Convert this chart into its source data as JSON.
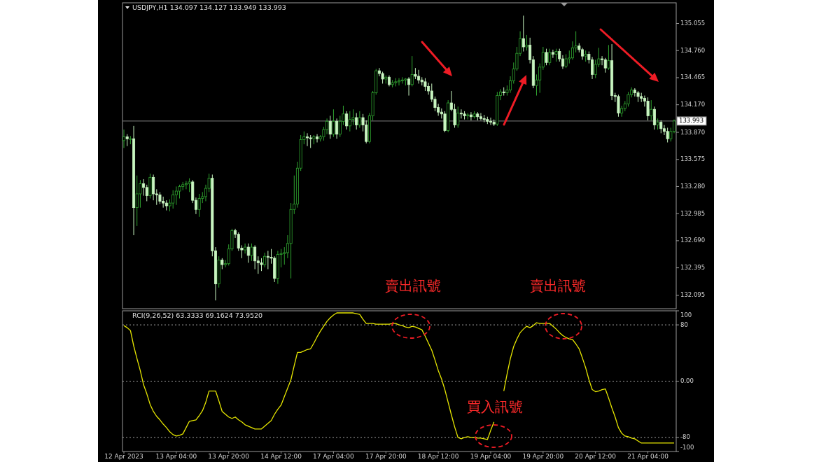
{
  "chart_data": [
    {
      "type": "candlestick",
      "title": "USDJPY,H1  134.097 134.127 133.949 133.993",
      "tick_labels": "y",
      "ylim": [
        131.95,
        135.28
      ],
      "yticks": [
        135.055,
        {
          "value": 134.76,
          "label": "134.760"
        },
        134.465,
        {
          "value": 134.17,
          "label": "134.170"
        },
        {
          "value": 133.87,
          "label": "133.870"
        },
        133.575,
        {
          "value": 133.28,
          "label": "133.280"
        },
        132.985,
        {
          "value": 132.69,
          "label": "132.690"
        },
        132.395,
        132.095
      ],
      "ref_lines": [
        {
          "axis": "y",
          "value": 133.993,
          "label": "133.993",
          "color": "#808080"
        }
      ],
      "annotations": [
        "賣出訊號",
        "賣出訊號"
      ],
      "categories": [
        null,
        null,
        null,
        null,
        null,
        null,
        null,
        null,
        null,
        null,
        null,
        null,
        null,
        null,
        null,
        null,
        null,
        null,
        null,
        null,
        null,
        null,
        null,
        null,
        null,
        null,
        null,
        null,
        null,
        null,
        null,
        null,
        null,
        null,
        null,
        null,
        null,
        null,
        null,
        null,
        null,
        null,
        null,
        null,
        null,
        null,
        null,
        null,
        null,
        null,
        null,
        null,
        null,
        null,
        null,
        null,
        null,
        null,
        null,
        null,
        null,
        null,
        null,
        null,
        null,
        null,
        null,
        null,
        null,
        null,
        null,
        null,
        null,
        null,
        null,
        null,
        null,
        null,
        null,
        null,
        null,
        null,
        null,
        null,
        null,
        null,
        null,
        null,
        null,
        null,
        null,
        null,
        null,
        null,
        null,
        null,
        null,
        null,
        null,
        null,
        null,
        null,
        null,
        null,
        null,
        null,
        null,
        null,
        null,
        null,
        null,
        null,
        null,
        null,
        null,
        null,
        null,
        null,
        null,
        null,
        null,
        null,
        null,
        null,
        null,
        null,
        null,
        null,
        null,
        null,
        null,
        null,
        null,
        null,
        null,
        null,
        null,
        null,
        null,
        null,
        null,
        null,
        null,
        null,
        null,
        null,
        null,
        null,
        null,
        null,
        null,
        null,
        null,
        null,
        null,
        null,
        null,
        null,
        null,
        null,
        null,
        null,
        null,
        null,
        null,
        null,
        null,
        null,
        null
      ],
      "series": [
        {
          "colors": [
            "#2fa32f",
            "#c8f5c0",
            "#2fa32f",
            "#c8f5c0",
            "#2fa32f",
            "#2fa32f",
            "#c8f5c0",
            "#c8f5c0",
            "#2fa32f",
            "#c8f5c0",
            "#c8f5c0",
            "#c8f5c0",
            "#c8f5c0",
            "#c8f5c0",
            "#2fa32f",
            "#2fa32f",
            "#2fa32f",
            "#2fa32f",
            "#2fa32f",
            "#2fa32f",
            "#2fa32f",
            "#c8f5c0",
            "#c8f5c0",
            "#2fa32f",
            "#2fa32f",
            "#2fa32f",
            "#2fa32f",
            "#c8f5c0",
            "#c8f5c0",
            "#2fa32f",
            "#c8f5c0",
            "#2fa32f",
            "#2fa32f",
            "#2fa32f",
            "#c8f5c0",
            "#c8f5c0",
            "#c8f5c0",
            "#2fa32f",
            "#c8f5c0",
            "#2fa32f",
            "#c8f5c0",
            "#c8f5c0",
            "#c8f5c0",
            "#2fa32f",
            "#c8f5c0",
            "#c8f5c0",
            "#c8f5c0",
            "#2fa32f",
            "#2fa32f",
            "#2fa32f",
            "#2fa32f",
            "#2fa32f",
            "#2fa32f",
            "#2fa32f",
            "#2fa32f",
            "#2fa32f",
            "#c8f5c0",
            "#c8f5c0",
            "#2fa32f",
            "#c8f5c0",
            "#2fa32f",
            "#2fa32f",
            "#2fa32f",
            "#c8f5c0",
            "#2fa32f",
            "#c8f5c0",
            "#2fa32f",
            "#2fa32f",
            "#c8f5c0",
            "#2fa32f",
            "#2fa32f",
            "#c8f5c0",
            "#2fa32f",
            "#c8f5c0",
            "#c8f5c0",
            "#2fa32f",
            "#2fa32f",
            "#2fa32f",
            "#c8f5c0",
            "#c8f5c0",
            "#2fa32f",
            "#c8f5c0",
            "#2fa32f",
            "#2fa32f",
            "#2fa32f",
            "#2fa32f",
            "#2fa32f",
            "#c8f5c0",
            "#2fa32f",
            "#c8f5c0",
            "#c8f5c0",
            "#c8f5c0",
            "#c8f5c0",
            "#c8f5c0",
            "#c8f5c0",
            "#c8f5c0",
            "#c8f5c0",
            "#c8f5c0",
            "#c8f5c0",
            "#2fa32f",
            "#c8f5c0",
            "#c8f5c0",
            "#2fa32f",
            "#c8f5c0",
            "#c8f5c0",
            "#2fa32f",
            "#c8f5c0",
            "#2fa32f",
            "#c8f5c0",
            "#c8f5c0",
            "#c8f5c0",
            "#c8f5c0",
            "#c8f5c0",
            "#c8f5c0",
            "#2fa32f",
            "#2fa32f",
            "#c8f5c0",
            "#2fa32f",
            "#2fa32f",
            "#2fa32f",
            "#2fa32f",
            "#2fa32f",
            "#c8f5c0",
            "#2fa32f",
            "#c8f5c0",
            "#c8f5c0",
            "#2fa32f",
            "#2fa32f",
            "#2fa32f",
            "#c8f5c0",
            "#2fa32f",
            "#c8f5c0",
            "#2fa32f",
            "#c8f5c0",
            "#c8f5c0",
            "#2fa32f",
            "#2fa32f",
            "#2fa32f",
            "#2fa32f",
            "#c8f5c0",
            "#c8f5c0",
            "#2fa32f",
            "#c8f5c0",
            "#c8f5c0",
            "#2fa32f",
            "#2fa32f",
            "#c8f5c0",
            "#c8f5c0",
            "#2fa32f",
            "#c8f5c0",
            "#c8f5c0",
            "#c8f5c0",
            "#2fa32f",
            "#2fa32f",
            "#2fa32f",
            "#2fa32f",
            "#c8f5c0",
            "#c8f5c0",
            "#c8f5c0",
            "#c8f5c0",
            "#c8f5c0",
            "#2fa32f",
            "#c8f5c0",
            "#2fa32f",
            "#c8f5c0",
            "#c8f5c0",
            "#c8f5c0",
            "#2fa32f",
            "#2fa32f"
          ],
          "ohlc": [
            [
              133.78,
              133.9,
              133.7,
              133.82
            ],
            [
              133.82,
              133.85,
              133.72,
              133.8
            ],
            [
              133.8,
              133.83,
              133.74,
              133.8
            ],
            [
              133.8,
              133.94,
              132.75,
              133.05
            ],
            [
              133.05,
              133.4,
              132.85,
              133.2
            ],
            [
              133.2,
              133.35,
              133.05,
              133.31
            ],
            [
              133.31,
              133.36,
              133.18,
              133.27
            ],
            [
              133.27,
              133.3,
              133.12,
              133.18
            ],
            [
              133.18,
              133.42,
              133.15,
              133.38
            ],
            [
              133.38,
              133.41,
              133.13,
              133.2
            ],
            [
              133.2,
              133.25,
              133.08,
              133.19
            ],
            [
              133.19,
              133.22,
              133.09,
              133.12
            ],
            [
              133.12,
              133.17,
              133.05,
              133.1
            ],
            [
              133.1,
              133.13,
              133.02,
              133.07
            ],
            [
              133.07,
              133.14,
              133.01,
              133.1
            ],
            [
              133.1,
              133.24,
              133.04,
              133.19
            ],
            [
              133.19,
              133.28,
              133.08,
              133.23
            ],
            [
              133.23,
              133.3,
              133.15,
              133.28
            ],
            [
              133.28,
              133.33,
              133.24,
              133.3
            ],
            [
              133.3,
              133.34,
              133.25,
              133.31
            ],
            [
              133.31,
              133.37,
              133.22,
              133.33
            ],
            [
              133.33,
              133.35,
              133.1,
              133.13
            ],
            [
              133.13,
              133.16,
              132.98,
              133.03
            ],
            [
              133.03,
              133.2,
              132.95,
              133.15
            ],
            [
              133.15,
              133.22,
              133.1,
              133.17
            ],
            [
              133.17,
              133.3,
              133.12,
              133.26
            ],
            [
              133.26,
              133.42,
              133.22,
              133.37
            ],
            [
              133.37,
              133.41,
              132.52,
              132.58
            ],
            [
              132.58,
              132.62,
              132.04,
              132.22
            ],
            [
              132.22,
              132.52,
              132.18,
              132.48
            ],
            [
              132.48,
              132.5,
              132.38,
              132.43
            ],
            [
              132.43,
              132.48,
              132.4,
              132.44
            ],
            [
              132.44,
              132.65,
              132.42,
              132.6
            ],
            [
              132.6,
              132.82,
              132.58,
              132.8
            ],
            [
              132.8,
              132.82,
              132.72,
              132.76
            ],
            [
              132.76,
              132.78,
              132.58,
              132.61
            ],
            [
              132.61,
              132.64,
              132.5,
              132.59
            ],
            [
              132.59,
              132.66,
              132.55,
              132.62
            ],
            [
              132.62,
              132.66,
              132.45,
              132.53
            ],
            [
              132.53,
              132.66,
              132.47,
              132.62
            ],
            [
              132.62,
              132.64,
              132.38,
              132.47
            ],
            [
              132.47,
              132.52,
              132.33,
              132.45
            ],
            [
              132.45,
              132.5,
              132.36,
              132.43
            ],
            [
              132.43,
              132.56,
              132.4,
              132.52
            ],
            [
              132.52,
              132.58,
              132.38,
              132.51
            ],
            [
              132.51,
              132.6,
              132.44,
              132.5
            ],
            [
              132.5,
              132.52,
              132.24,
              132.28
            ],
            [
              132.28,
              132.58,
              132.22,
              132.54
            ],
            [
              132.54,
              132.6,
              132.4,
              132.55
            ],
            [
              132.55,
              132.62,
              132.43,
              132.56
            ],
            [
              132.56,
              132.75,
              132.5,
              132.66
            ],
            [
              132.66,
              133.1,
              132.28,
              133.03
            ],
            [
              133.03,
              133.4,
              132.98,
              133.09
            ],
            [
              133.09,
              133.55,
              133.05,
              133.48
            ],
            [
              133.48,
              133.84,
              133.45,
              133.79
            ],
            [
              133.79,
              133.88,
              133.74,
              133.82
            ],
            [
              133.82,
              133.86,
              133.72,
              133.81
            ],
            [
              133.81,
              133.84,
              133.7,
              133.8
            ],
            [
              133.8,
              133.84,
              133.74,
              133.82
            ],
            [
              133.82,
              133.85,
              133.76,
              133.8
            ],
            [
              133.8,
              133.84,
              133.77,
              133.82
            ],
            [
              133.82,
              133.93,
              133.78,
              133.9
            ],
            [
              133.9,
              134.02,
              133.85,
              133.99
            ],
            [
              133.99,
              134.05,
              133.8,
              133.85
            ],
            [
              133.85,
              134.12,
              133.82,
              133.99
            ],
            [
              133.99,
              134.02,
              133.8,
              133.85
            ],
            [
              133.85,
              134.05,
              133.82,
              133.99
            ],
            [
              133.99,
              134.16,
              133.95,
              134.07
            ],
            [
              134.07,
              134.1,
              133.9,
              133.94
            ],
            [
              133.94,
              134.1,
              133.88,
              134.01
            ],
            [
              134.01,
              134.12,
              133.95,
              134.03
            ],
            [
              134.03,
              134.08,
              133.9,
              133.95
            ],
            [
              133.95,
              134.1,
              133.92,
              134.03
            ],
            [
              134.03,
              134.07,
              133.88,
              133.95
            ],
            [
              133.95,
              134,
              133.75,
              133.77
            ],
            [
              133.77,
              134.08,
              133.75,
              134.05
            ],
            [
              134.05,
              134.32,
              134,
              134.3
            ],
            [
              134.3,
              134.56,
              134.28,
              134.54
            ],
            [
              134.54,
              134.57,
              134.48,
              134.51
            ],
            [
              134.51,
              134.53,
              134.4,
              134.45
            ],
            [
              134.45,
              134.49,
              134.4,
              134.47
            ],
            [
              134.47,
              134.49,
              134.37,
              134.39
            ],
            [
              134.39,
              134.44,
              134.36,
              134.41
            ],
            [
              134.41,
              134.46,
              134.37,
              134.42
            ],
            [
              134.42,
              134.46,
              134.38,
              134.43
            ],
            [
              134.43,
              134.47,
              134.4,
              134.44
            ],
            [
              134.44,
              134.46,
              134.38,
              134.45
            ],
            [
              134.45,
              134.47,
              134.27,
              134.39
            ],
            [
              134.39,
              134.7,
              134.37,
              134.5
            ],
            [
              134.5,
              134.57,
              134.45,
              134.48
            ],
            [
              134.48,
              134.55,
              134.4,
              134.44
            ],
            [
              134.44,
              134.47,
              134.38,
              134.42
            ],
            [
              134.42,
              134.46,
              134.32,
              134.37
            ],
            [
              134.37,
              134.41,
              134.28,
              134.32
            ],
            [
              134.32,
              134.4,
              134.2,
              134.23
            ],
            [
              134.23,
              134.26,
              134.1,
              134.14
            ],
            [
              134.14,
              134.18,
              134.05,
              134.09
            ],
            [
              134.09,
              134.13,
              134.02,
              134.07
            ],
            [
              134.07,
              134.1,
              133.87,
              133.89
            ],
            [
              133.89,
              134.22,
              133.87,
              134.19
            ],
            [
              134.19,
              134.32,
              134.1,
              134.12
            ],
            [
              134.12,
              134.18,
              133.92,
              133.95
            ],
            [
              133.95,
              134.15,
              133.92,
              134.08
            ],
            [
              134.08,
              134.12,
              134.02,
              134.07
            ],
            [
              134.07,
              134.1,
              134.01,
              134.05
            ],
            [
              134.05,
              134.08,
              134.01,
              134.06
            ],
            [
              134.06,
              134.09,
              134,
              134.04
            ],
            [
              134.04,
              134.1,
              134.02,
              134.07
            ],
            [
              134.07,
              134.09,
              134,
              134.04
            ],
            [
              134.04,
              134.08,
              134,
              134.02
            ],
            [
              134.02,
              134.06,
              133.98,
              134.01
            ],
            [
              134.01,
              134.04,
              133.96,
              133.99
            ],
            [
              133.99,
              134.03,
              133.95,
              133.98
            ],
            [
              133.98,
              134.01,
              133.94,
              133.96
            ],
            [
              133.96,
              134.31,
              133.94,
              134.27
            ],
            [
              134.27,
              134.34,
              134.22,
              134.31
            ],
            [
              134.31,
              134.36,
              134.27,
              134.3
            ],
            [
              134.3,
              134.38,
              134.27,
              134.33
            ],
            [
              134.33,
              134.48,
              134.3,
              134.43
            ],
            [
              134.43,
              134.63,
              134.4,
              134.56
            ],
            [
              134.56,
              134.8,
              134.54,
              134.73
            ],
            [
              134.73,
              134.97,
              134.7,
              134.89
            ],
            [
              134.89,
              135.14,
              134.75,
              134.8
            ],
            [
              134.8,
              134.93,
              134.76,
              134.82
            ],
            [
              134.82,
              134.9,
              134.62,
              134.66
            ],
            [
              134.66,
              134.7,
              134.35,
              134.38
            ],
            [
              134.38,
              134.5,
              134.27,
              134.44
            ],
            [
              134.44,
              134.62,
              134.3,
              134.58
            ],
            [
              134.58,
              134.8,
              134.55,
              134.74
            ],
            [
              134.74,
              134.78,
              134.6,
              134.63
            ],
            [
              134.63,
              134.78,
              134.6,
              134.74
            ],
            [
              134.74,
              134.77,
              134.68,
              134.72
            ],
            [
              134.72,
              134.78,
              134.64,
              134.75
            ],
            [
              134.75,
              134.78,
              134.64,
              134.67
            ],
            [
              134.67,
              134.71,
              134.56,
              134.59
            ],
            [
              134.59,
              134.72,
              134.57,
              134.67
            ],
            [
              134.67,
              134.76,
              134.62,
              134.68
            ],
            [
              134.68,
              134.86,
              134.66,
              134.79
            ],
            [
              134.79,
              134.97,
              134.74,
              134.81
            ],
            [
              134.81,
              134.84,
              134.74,
              134.77
            ],
            [
              134.77,
              134.79,
              134.66,
              134.7
            ],
            [
              134.7,
              134.76,
              134.64,
              134.72
            ],
            [
              134.72,
              134.75,
              134.62,
              134.66
            ],
            [
              134.66,
              134.69,
              134.45,
              134.5
            ],
            [
              134.5,
              134.66,
              134.46,
              134.61
            ],
            [
              134.61,
              134.79,
              134.58,
              134.67
            ],
            [
              134.67,
              134.7,
              134.6,
              134.66
            ],
            [
              134.66,
              134.68,
              134.52,
              134.57
            ],
            [
              134.57,
              134.82,
              134.55,
              134.65
            ],
            [
              134.65,
              134.83,
              134.22,
              134.27
            ],
            [
              134.27,
              134.3,
              134.2,
              134.26
            ],
            [
              134.26,
              134.28,
              134.04,
              134.08
            ],
            [
              134.08,
              134.16,
              134.04,
              134.13
            ],
            [
              134.13,
              134.21,
              134.1,
              134.18
            ],
            [
              134.18,
              134.31,
              134.15,
              134.28
            ],
            [
              134.28,
              134.36,
              134.25,
              134.33
            ],
            [
              134.33,
              134.35,
              134.26,
              134.3
            ],
            [
              134.3,
              134.32,
              134.2,
              134.26
            ],
            [
              134.26,
              134.3,
              134.2,
              134.24
            ],
            [
              134.24,
              134.27,
              134.15,
              134.21
            ],
            [
              134.21,
              134.25,
              134,
              134.05
            ],
            [
              134.05,
              134.22,
              134,
              134.12
            ],
            [
              134.12,
              134.15,
              133.9,
              133.95
            ],
            [
              133.95,
              134.02,
              133.9,
              133.98
            ],
            [
              133.98,
              134,
              133.86,
              133.91
            ],
            [
              133.91,
              133.95,
              133.84,
              133.88
            ],
            [
              133.88,
              133.92,
              133.76,
              133.8
            ],
            [
              133.8,
              133.92,
              133.77,
              133.88
            ],
            [
              133.88,
              134.01,
              133.86,
              133.993
            ]
          ]
        }
      ]
    },
    {
      "type": "line",
      "title": "RCI(9,26,52) 63.3333 69.1624 73.9520",
      "ylim": [
        -100,
        100
      ],
      "yticks": [
        100,
        80,
        {
          "value": 0,
          "label": "0.00"
        },
        -80,
        -100
      ],
      "ref_lines": [
        {
          "axis": "y",
          "value": 80,
          "color": "#a0a0a0",
          "line_style": "dotted"
        },
        {
          "axis": "y",
          "value": 0,
          "color": "#a0a0a0",
          "line_style": "dotted"
        },
        {
          "axis": "y",
          "value": -80,
          "color": "#a0a0a0",
          "line_style": "dotted"
        }
      ],
      "annotations": [
        "買入訊號"
      ],
      "categories": [
        "12 Apr 2023",
        null,
        null,
        null,
        null,
        null,
        null,
        null,
        null,
        null,
        null,
        null,
        null,
        null,
        null,
        null,
        "13 Apr 04:00",
        null,
        null,
        null,
        null,
        null,
        null,
        null,
        null,
        null,
        null,
        null,
        null,
        null,
        null,
        null,
        "13 Apr 20:00",
        null,
        null,
        null,
        null,
        null,
        null,
        null,
        null,
        null,
        null,
        null,
        null,
        null,
        null,
        null,
        "14 Apr 12:00",
        null,
        null,
        null,
        null,
        null,
        null,
        null,
        null,
        null,
        null,
        null,
        null,
        null,
        null,
        null,
        "17 Apr 04:00",
        null,
        null,
        null,
        null,
        null,
        null,
        null,
        null,
        null,
        null,
        null,
        null,
        null,
        null,
        null,
        "17 Apr 20:00",
        null,
        null,
        null,
        null,
        null,
        null,
        null,
        null,
        null,
        null,
        null,
        null,
        null,
        null,
        null,
        "18 Apr 12:00",
        null,
        null,
        null,
        null,
        null,
        null,
        null,
        null,
        null,
        null,
        null,
        null,
        null,
        null,
        null,
        "19 Apr 04:00",
        null,
        null,
        null,
        null,
        null,
        null,
        null,
        null,
        null,
        null,
        null,
        null,
        null,
        null,
        null,
        "19 Apr 20:00",
        null,
        null,
        null,
        null,
        null,
        null,
        null,
        null,
        null,
        null,
        null,
        null,
        null,
        null,
        null,
        "20 Apr 12:00",
        null,
        null,
        null,
        null,
        null,
        null,
        null,
        null,
        null,
        null,
        null,
        null,
        null,
        null,
        null,
        "21 Apr 04:00",
        null,
        null,
        null,
        null,
        null,
        null,
        null,
        null
      ],
      "series": [
        {
          "color": "#e6e600",
          "values": [
            79,
            76,
            72,
            50,
            32,
            15,
            -5,
            -18,
            -33,
            -43,
            -50,
            -55,
            -61,
            -66,
            -72,
            -76,
            -78,
            -77,
            -75,
            -66,
            -57,
            -56,
            -55,
            -49,
            -42,
            -30,
            -14,
            -14,
            -14,
            -28,
            -43,
            -47,
            -51,
            -53,
            -51,
            -55,
            -58,
            -62,
            -64,
            -66,
            -68,
            -68,
            -68,
            -64,
            -60,
            -56,
            -47,
            -40,
            -34,
            -22,
            -10,
            2,
            22,
            41,
            41,
            43,
            45,
            46,
            54,
            63,
            71,
            78,
            85,
            90,
            94,
            97,
            97,
            97,
            97,
            97,
            97,
            96,
            95,
            88,
            82,
            82,
            82,
            81,
            81,
            81,
            81,
            81,
            82,
            82,
            80,
            79,
            77,
            76,
            78,
            77,
            75,
            73,
            64,
            54,
            44,
            30,
            15,
            3,
            -12,
            -30,
            -48,
            -65,
            -80,
            -82,
            -80,
            -79,
            -80,
            -80,
            -81,
            -81,
            -82,
            -83,
            -70,
            -58,
            null,
            null,
            -14,
            10,
            32,
            49,
            60,
            69,
            74,
            78,
            76,
            79,
            83,
            82,
            82,
            82,
            82,
            78,
            74,
            69,
            65,
            62,
            60,
            59,
            53,
            46,
            33,
            19,
            2,
            -12,
            -15,
            -14,
            -12,
            -11,
            -24,
            -38,
            -51,
            -66,
            -74,
            -78,
            -79,
            -81,
            -82,
            -85,
            -88,
            -88,
            -88,
            -88,
            -88,
            -88,
            -88,
            -88,
            -88,
            -88,
            -88
          ]
        }
      ]
    }
  ]
}
